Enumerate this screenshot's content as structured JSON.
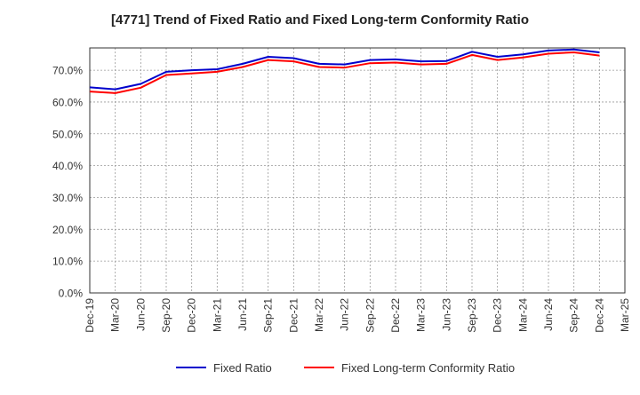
{
  "chart_data": {
    "type": "line",
    "title": "[4771]  Trend of Fixed Ratio and Fixed Long-term Conformity Ratio",
    "xlabel": "",
    "ylabel": "",
    "x": [
      "Dec-19",
      "Mar-20",
      "Jun-20",
      "Sep-20",
      "Dec-20",
      "Mar-21",
      "Jun-21",
      "Sep-21",
      "Dec-21",
      "Mar-22",
      "Jun-22",
      "Sep-22",
      "Dec-22",
      "Mar-23",
      "Jun-23",
      "Sep-23",
      "Dec-23",
      "Mar-24",
      "Jun-24",
      "Sep-24",
      "Dec-24"
    ],
    "x_ticks": [
      "Dec-19",
      "Mar-20",
      "Jun-20",
      "Sep-20",
      "Dec-20",
      "Mar-21",
      "Jun-21",
      "Sep-21",
      "Dec-21",
      "Mar-22",
      "Jun-22",
      "Sep-22",
      "Dec-22",
      "Mar-23",
      "Jun-23",
      "Sep-23",
      "Dec-23",
      "Mar-24",
      "Jun-24",
      "Sep-24",
      "Dec-24",
      "Mar-25"
    ],
    "y_ticks": [
      "0.0%",
      "10.0%",
      "20.0%",
      "30.0%",
      "40.0%",
      "50.0%",
      "60.0%",
      "70.0%"
    ],
    "ylim": [
      0,
      77
    ],
    "grid": true,
    "legend_position": "bottom",
    "series": [
      {
        "name": "Fixed Ratio",
        "color": "#0000cc",
        "values": [
          64.6,
          64.0,
          65.7,
          69.5,
          70.0,
          70.3,
          72.0,
          74.2,
          73.8,
          72.0,
          71.8,
          73.2,
          73.4,
          72.8,
          72.9,
          75.8,
          74.2,
          75.0,
          76.2,
          76.5,
          75.6
        ]
      },
      {
        "name": "Fixed Long-term Conformity Ratio",
        "color": "#ff0000",
        "values": [
          63.3,
          62.8,
          64.5,
          68.5,
          69.0,
          69.5,
          71.0,
          73.2,
          72.8,
          71.0,
          70.8,
          72.2,
          72.4,
          71.8,
          72.0,
          74.8,
          73.2,
          74.0,
          75.2,
          75.6,
          74.6
        ]
      }
    ]
  }
}
